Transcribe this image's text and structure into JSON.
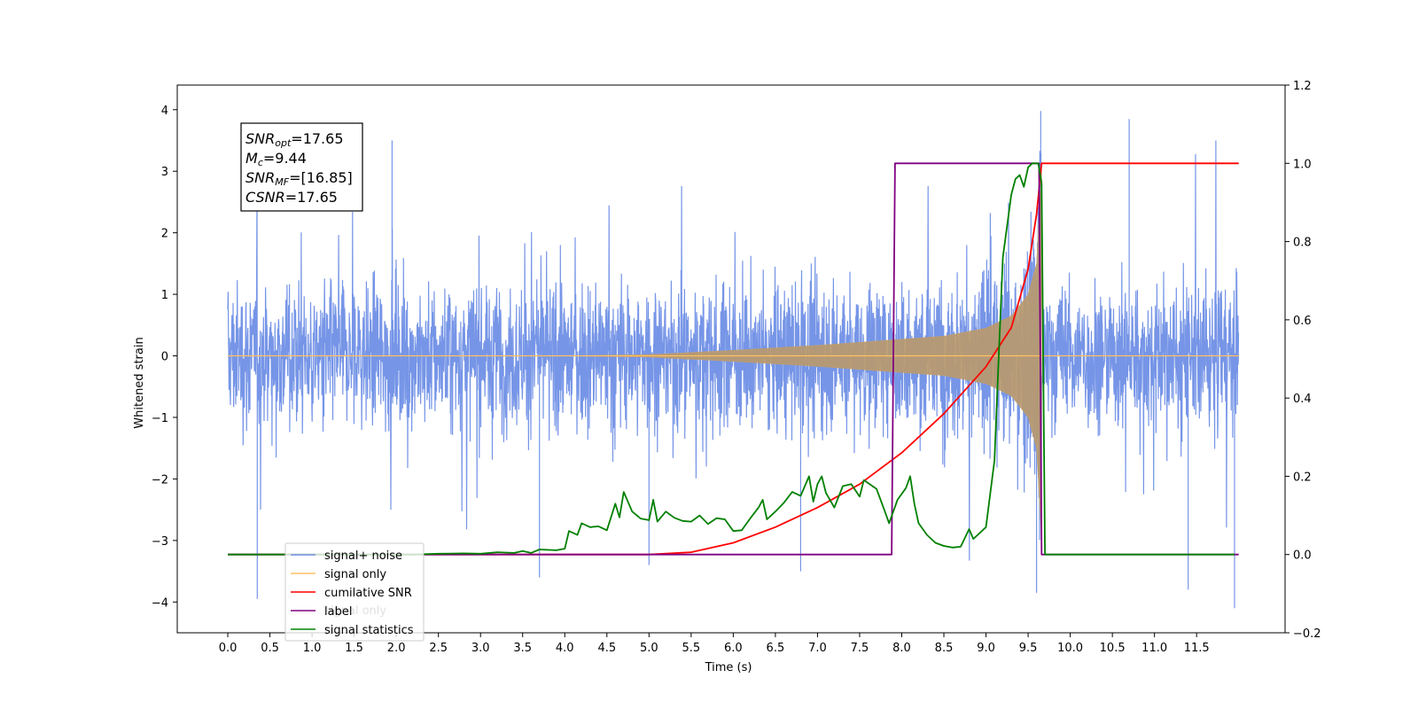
{
  "chart_data": {
    "type": "line",
    "xlabel": "Time (s)",
    "ylabel": "Whitened strain",
    "xlim": [
      -0.6,
      12.55
    ],
    "ylim": [
      -4.5,
      4.4
    ],
    "y2lim": [
      -0.2,
      1.2
    ],
    "x_ticks": [
      "0.0",
      "0.5",
      "1.0",
      "1.5",
      "2.0",
      "2.5",
      "3.0",
      "3.5",
      "4.0",
      "4.5",
      "5.0",
      "5.5",
      "6.0",
      "6.5",
      "7.0",
      "7.5",
      "8.0",
      "8.5",
      "9.0",
      "9.5",
      "10.0",
      "10.5",
      "11.0",
      "11.5"
    ],
    "y_ticks": [
      "4",
      "3",
      "2",
      "1",
      "0",
      "−1",
      "−2",
      "−3",
      "−4"
    ],
    "y2_ticks": [
      "1.2",
      "1.0",
      "0.8",
      "0.6",
      "0.4",
      "0.2",
      "0.0",
      "−0.2"
    ],
    "info_box": {
      "line1": {
        "sym": "SNR",
        "sub": "opt",
        "val": "=17.65"
      },
      "line2": {
        "sym": "M",
        "sub": "c",
        "val": "=9.44"
      },
      "line3": {
        "sym": "SNR",
        "sub": "MF",
        "val": "=[16.85]"
      },
      "line4": {
        "sym": "CSNR",
        "sub": "",
        "val": "=17.65"
      }
    },
    "legend": {
      "placement": "lower-left",
      "entries": [
        {
          "label": "signal+ noise",
          "color": "#6f8fe6"
        },
        {
          "label": "signal only",
          "color": "#ffc060"
        },
        {
          "label": "cumilative SNR",
          "color": "#ff0000"
        },
        {
          "label": "label",
          "color": "#800080"
        },
        {
          "label": "signal statistics",
          "color": "#008000"
        }
      ]
    },
    "ghost_text": {
      "label": "signal only",
      "stray": "ti"
    },
    "series": [
      {
        "name": "signal+ noise",
        "axis": "left",
        "color": "#6f8fe6",
        "t_range": [
          0.0,
          12.0
        ],
        "noise_band": [
          -2.2,
          2.2
        ],
        "extreme_peaks": [
          [
            0.35,
            -3.95
          ],
          [
            1.95,
            3.5
          ],
          [
            3.7,
            -3.6
          ],
          [
            5.0,
            -3.4
          ],
          [
            6.8,
            -3.5
          ],
          [
            9.65,
            3.98
          ],
          [
            9.6,
            -3.85
          ],
          [
            10.7,
            3.85
          ],
          [
            11.4,
            -3.8
          ],
          [
            11.95,
            -4.1
          ]
        ]
      },
      {
        "name": "signal only",
        "axis": "left",
        "color": "#ffc060",
        "chirp_end_time": 9.66,
        "envelope": [
          {
            "t": 5.0,
            "a": 0.02
          },
          {
            "t": 6.0,
            "a": 0.09
          },
          {
            "t": 7.0,
            "a": 0.17
          },
          {
            "t": 8.0,
            "a": 0.27
          },
          {
            "t": 8.5,
            "a": 0.32
          },
          {
            "t": 9.0,
            "a": 0.45
          },
          {
            "t": 9.3,
            "a": 0.65
          },
          {
            "t": 9.5,
            "a": 1.0
          },
          {
            "t": 9.6,
            "a": 1.5
          },
          {
            "t": 9.66,
            "a": 3.0
          }
        ]
      },
      {
        "name": "cumilative SNR",
        "axis": "right",
        "color": "#ff0000",
        "points": [
          [
            0.0,
            0.0
          ],
          [
            5.0,
            0.0
          ],
          [
            5.5,
            0.006
          ],
          [
            6.0,
            0.03
          ],
          [
            6.5,
            0.07
          ],
          [
            7.0,
            0.12
          ],
          [
            7.5,
            0.18
          ],
          [
            8.0,
            0.26
          ],
          [
            8.5,
            0.36
          ],
          [
            9.0,
            0.48
          ],
          [
            9.3,
            0.58
          ],
          [
            9.5,
            0.73
          ],
          [
            9.6,
            0.87
          ],
          [
            9.66,
            1.0
          ],
          [
            12.0,
            1.0
          ]
        ]
      },
      {
        "name": "label",
        "axis": "right",
        "color": "#800080",
        "points": [
          [
            0.0,
            0.0
          ],
          [
            7.88,
            0.0
          ],
          [
            7.92,
            1.0
          ],
          [
            9.63,
            1.0
          ],
          [
            9.66,
            0.0
          ],
          [
            12.0,
            0.0
          ]
        ]
      },
      {
        "name": "signal statistics",
        "axis": "right",
        "color": "#008000",
        "points": [
          [
            0.0,
            0.0
          ],
          [
            2.2,
            0.0
          ],
          [
            2.5,
            0.002
          ],
          [
            2.8,
            0.003
          ],
          [
            3.0,
            0.002
          ],
          [
            3.2,
            0.006
          ],
          [
            3.4,
            0.004
          ],
          [
            3.5,
            0.009
          ],
          [
            3.6,
            0.004
          ],
          [
            3.7,
            0.013
          ],
          [
            3.9,
            0.011
          ],
          [
            4.0,
            0.015
          ],
          [
            4.05,
            0.06
          ],
          [
            4.15,
            0.05
          ],
          [
            4.2,
            0.08
          ],
          [
            4.3,
            0.07
          ],
          [
            4.4,
            0.072
          ],
          [
            4.5,
            0.062
          ],
          [
            4.6,
            0.13
          ],
          [
            4.65,
            0.095
          ],
          [
            4.7,
            0.16
          ],
          [
            4.8,
            0.11
          ],
          [
            4.9,
            0.092
          ],
          [
            5.0,
            0.088
          ],
          [
            5.05,
            0.14
          ],
          [
            5.1,
            0.084
          ],
          [
            5.2,
            0.11
          ],
          [
            5.3,
            0.094
          ],
          [
            5.4,
            0.086
          ],
          [
            5.5,
            0.084
          ],
          [
            5.6,
            0.1
          ],
          [
            5.7,
            0.078
          ],
          [
            5.8,
            0.093
          ],
          [
            5.9,
            0.09
          ],
          [
            6.0,
            0.06
          ],
          [
            6.1,
            0.062
          ],
          [
            6.2,
            0.092
          ],
          [
            6.3,
            0.12
          ],
          [
            6.35,
            0.14
          ],
          [
            6.4,
            0.09
          ],
          [
            6.5,
            0.11
          ],
          [
            6.6,
            0.132
          ],
          [
            6.7,
            0.16
          ],
          [
            6.8,
            0.15
          ],
          [
            6.9,
            0.2
          ],
          [
            6.95,
            0.135
          ],
          [
            7.0,
            0.18
          ],
          [
            7.05,
            0.2
          ],
          [
            7.1,
            0.158
          ],
          [
            7.2,
            0.12
          ],
          [
            7.3,
            0.175
          ],
          [
            7.4,
            0.18
          ],
          [
            7.5,
            0.148
          ],
          [
            7.55,
            0.19
          ],
          [
            7.7,
            0.168
          ],
          [
            7.8,
            0.11
          ],
          [
            7.85,
            0.08
          ],
          [
            7.95,
            0.14
          ],
          [
            8.05,
            0.17
          ],
          [
            8.1,
            0.2
          ],
          [
            8.15,
            0.13
          ],
          [
            8.2,
            0.08
          ],
          [
            8.3,
            0.05
          ],
          [
            8.4,
            0.03
          ],
          [
            8.5,
            0.022
          ],
          [
            8.6,
            0.018
          ],
          [
            8.7,
            0.02
          ],
          [
            8.8,
            0.065
          ],
          [
            8.85,
            0.04
          ],
          [
            9.0,
            0.07
          ],
          [
            9.1,
            0.24
          ],
          [
            9.15,
            0.5
          ],
          [
            9.2,
            0.76
          ],
          [
            9.3,
            0.92
          ],
          [
            9.35,
            0.96
          ],
          [
            9.4,
            0.97
          ],
          [
            9.45,
            0.94
          ],
          [
            9.5,
            0.99
          ],
          [
            9.55,
            1.0
          ],
          [
            9.62,
            1.0
          ],
          [
            9.66,
            0.95
          ],
          [
            9.7,
            0.0
          ],
          [
            11.95,
            0.0
          ]
        ]
      }
    ]
  }
}
